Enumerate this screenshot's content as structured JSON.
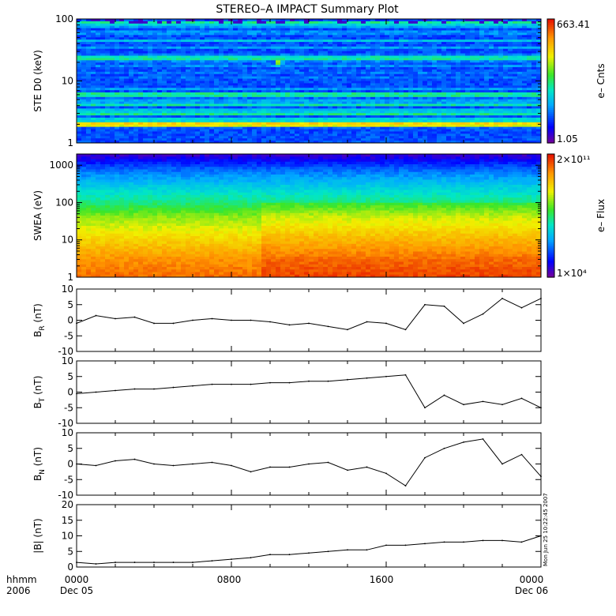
{
  "title": "STEREO–A IMPACT Summary Plot",
  "time_axis": {
    "row1_labels": [
      "hhmm",
      "0000",
      "0800",
      "1600",
      "0000"
    ],
    "row2_labels": [
      "2006",
      "Dec 05",
      "",
      "",
      "Dec 06"
    ],
    "range_hours": [
      0,
      24
    ]
  },
  "stamp": "Mon Jun 25 10:22:45 2007",
  "colors": {
    "background": "#ffffff",
    "axes": "#000000",
    "trace": "#000000"
  },
  "chart_data": [
    {
      "type": "heatmap",
      "ylabel": "STE D0 (keV)",
      "yscale": "log",
      "ylim": [
        1,
        100
      ],
      "yticks": [
        "1",
        "10",
        "100"
      ],
      "colorbar": {
        "label": "e– Cnts",
        "min_label": "1.05",
        "max_label": "663.41",
        "min": 1.05,
        "max": 663.41
      },
      "energy_bands": [
        {
          "y": 95,
          "level": 0.05
        },
        {
          "y": 85,
          "level": 0.55
        },
        {
          "y": 75,
          "level": 0.3
        },
        {
          "y": 60,
          "level": 0.35
        },
        {
          "y": 45,
          "level": 0.35
        },
        {
          "y": 35,
          "level": 0.3
        },
        {
          "y": 25,
          "level": 0.45
        },
        {
          "y": 22,
          "level": 0.48
        },
        {
          "y": 18,
          "level": 0.32
        },
        {
          "y": 14,
          "level": 0.3
        },
        {
          "y": 11,
          "level": 0.28
        },
        {
          "y": 9,
          "level": 0.2
        },
        {
          "y": 7.5,
          "level": 0.3
        },
        {
          "y": 6,
          "level": 0.6
        },
        {
          "y": 5,
          "level": 0.35
        },
        {
          "y": 4.2,
          "level": 0.5
        },
        {
          "y": 3.5,
          "level": 0.35
        },
        {
          "y": 3,
          "level": 0.55
        },
        {
          "y": 2.5,
          "level": 0.4
        },
        {
          "y": 2.1,
          "level": 0.78
        },
        {
          "y": 1.9,
          "level": 0.7
        }
      ],
      "event": {
        "time": 10.5,
        "energy": 20,
        "level": 0.95
      }
    },
    {
      "type": "heatmap",
      "ylabel": "SWEA (eV)",
      "yscale": "log",
      "ylim": [
        1,
        2000
      ],
      "yticks": [
        "1",
        "10",
        "100",
        "1000"
      ],
      "colorbar": {
        "label": "e– Flux",
        "min_label": "1×10⁴",
        "max_label": "2×10¹¹",
        "min": 10000,
        "max": 200000000000
      },
      "energy_levels": [
        {
          "y": 1,
          "level": 0.9
        },
        {
          "y": 3,
          "level": 0.85
        },
        {
          "y": 10,
          "level": 0.75
        },
        {
          "y": 40,
          "level": 0.62
        },
        {
          "y": 100,
          "level": 0.48
        },
        {
          "y": 300,
          "level": 0.35
        },
        {
          "y": 800,
          "level": 0.22
        },
        {
          "y": 1500,
          "level": 0.1
        },
        {
          "y": 2000,
          "level": 0.05
        }
      ]
    },
    {
      "type": "line",
      "ylabel": "B_R (nT)",
      "ylim": [
        -10,
        10
      ],
      "yticks": [
        "-10",
        "-5",
        "0",
        "5",
        "10"
      ],
      "x": [
        0,
        1,
        2,
        3,
        4,
        5,
        6,
        7,
        8,
        9,
        10,
        11,
        12,
        13,
        14,
        15,
        16,
        17,
        18,
        19,
        20,
        21,
        22,
        23,
        24
      ],
      "values": [
        -1,
        1.5,
        0.5,
        1,
        -1,
        -1,
        0,
        0.5,
        0,
        0,
        -0.5,
        -1.5,
        -1,
        -2,
        -3,
        -0.5,
        -1,
        -3,
        5,
        4.5,
        -1,
        2,
        7,
        4,
        7
      ]
    },
    {
      "type": "line",
      "ylabel": "B_T (nT)",
      "ylim": [
        -10,
        10
      ],
      "yticks": [
        "-10",
        "-5",
        "0",
        "5",
        "10"
      ],
      "x": [
        0,
        1,
        2,
        3,
        4,
        5,
        6,
        7,
        8,
        9,
        10,
        11,
        12,
        13,
        14,
        15,
        16,
        17,
        18,
        19,
        20,
        21,
        22,
        23,
        24
      ],
      "values": [
        -0.5,
        0,
        0.5,
        1,
        1,
        1.5,
        2,
        2.5,
        2.5,
        2.5,
        3,
        3,
        3.5,
        3.5,
        4,
        4.5,
        5,
        5.5,
        -5,
        -1,
        -4,
        -3,
        -4,
        -2,
        -5
      ]
    },
    {
      "type": "line",
      "ylabel": "B_N (nT)",
      "ylim": [
        -10,
        10
      ],
      "yticks": [
        "-10",
        "-5",
        "0",
        "5",
        "10"
      ],
      "x": [
        0,
        1,
        2,
        3,
        4,
        5,
        6,
        7,
        8,
        9,
        10,
        11,
        12,
        13,
        14,
        15,
        16,
        17,
        18,
        19,
        20,
        21,
        22,
        23,
        24
      ],
      "values": [
        0,
        -0.5,
        1,
        1.5,
        0,
        -0.5,
        0,
        0.5,
        -0.5,
        -2.5,
        -1,
        -1,
        0,
        0.5,
        -2,
        -1,
        -3,
        -7,
        2,
        5,
        7,
        8,
        0,
        3,
        -4
      ]
    },
    {
      "type": "line",
      "ylabel": "|B| (nT)",
      "ylim": [
        0,
        20
      ],
      "yticks": [
        "0",
        "5",
        "10",
        "15",
        "20"
      ],
      "x": [
        0,
        1,
        2,
        3,
        4,
        5,
        6,
        7,
        8,
        9,
        10,
        11,
        12,
        13,
        14,
        15,
        16,
        17,
        18,
        19,
        20,
        21,
        22,
        23,
        24
      ],
      "values": [
        1.5,
        1,
        1.5,
        1.5,
        1.5,
        1.5,
        1.5,
        2,
        2.5,
        3,
        4,
        4,
        4.5,
        5,
        5.5,
        5.5,
        7,
        7,
        7.5,
        8,
        8,
        8.5,
        8.5,
        8,
        10
      ]
    }
  ]
}
